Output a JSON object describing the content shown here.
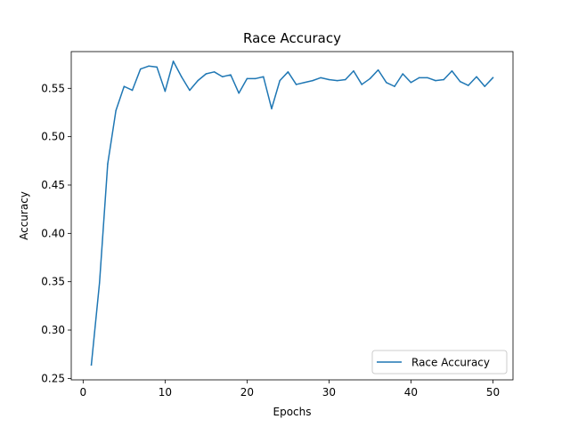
{
  "chart_data": {
    "type": "line",
    "title": "Race Accuracy",
    "xlabel": "Epochs",
    "ylabel": "Accuracy",
    "xlim": [
      -1.45,
      52.45
    ],
    "ylim": [
      0.2485,
      0.588
    ],
    "xticks": [
      0,
      10,
      20,
      30,
      40,
      50
    ],
    "yticks": [
      0.25,
      0.3,
      0.35,
      0.4,
      0.45,
      0.5,
      0.55
    ],
    "grid": false,
    "legend_position": "lower right",
    "series": [
      {
        "name": "Race Accuracy",
        "color": "#1f77b4",
        "x": [
          1,
          2,
          3,
          4,
          5,
          6,
          7,
          8,
          9,
          10,
          11,
          12,
          13,
          14,
          15,
          16,
          17,
          18,
          19,
          20,
          21,
          22,
          23,
          24,
          25,
          26,
          27,
          28,
          29,
          30,
          31,
          32,
          33,
          34,
          35,
          36,
          37,
          38,
          39,
          40,
          41,
          42,
          43,
          44,
          45,
          46,
          47,
          48,
          49,
          50
        ],
        "y": [
          0.264,
          0.349,
          0.472,
          0.527,
          0.552,
          0.548,
          0.57,
          0.573,
          0.572,
          0.547,
          0.578,
          0.562,
          0.548,
          0.558,
          0.565,
          0.567,
          0.562,
          0.564,
          0.545,
          0.56,
          0.56,
          0.562,
          0.529,
          0.558,
          0.567,
          0.554,
          0.556,
          0.558,
          0.561,
          0.559,
          0.558,
          0.559,
          0.568,
          0.554,
          0.56,
          0.569,
          0.556,
          0.552,
          0.565,
          0.556,
          0.561,
          0.561,
          0.558,
          0.559,
          0.568,
          0.557,
          0.553,
          0.562,
          0.552,
          0.561
        ]
      }
    ]
  }
}
